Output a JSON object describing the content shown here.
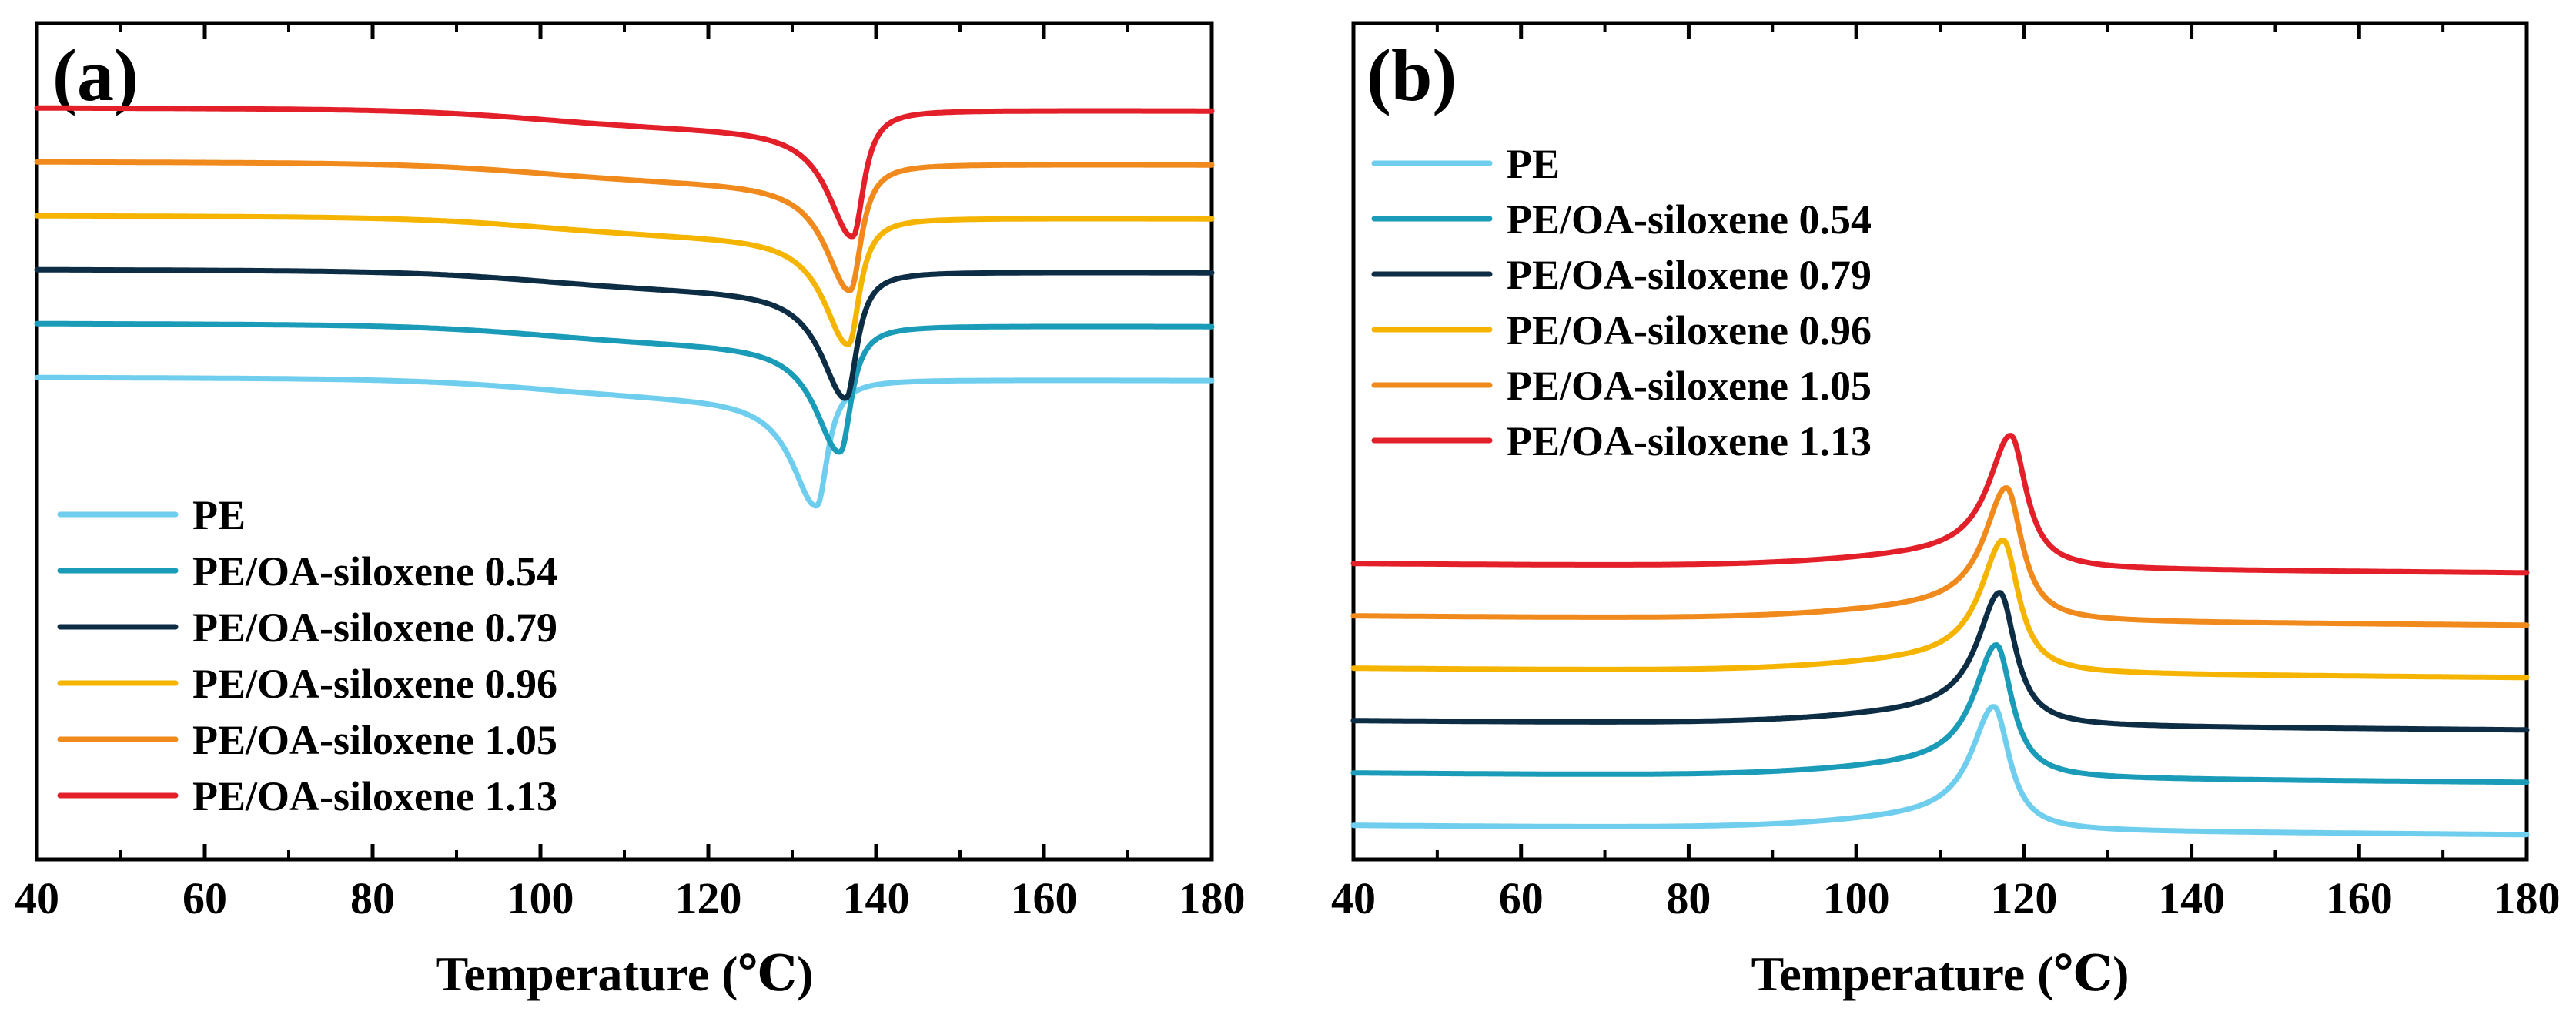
{
  "chart_data": [
    {
      "panel": "a",
      "panel_label": "(a)",
      "type": "line",
      "xlabel": "Temperature (℃)",
      "ylabel": "",
      "xlim": [
        40,
        180
      ],
      "xticks": [
        40,
        60,
        80,
        100,
        120,
        140,
        160,
        180
      ],
      "y_ticks_shown": false,
      "legend_location": "bottom-left",
      "curve_kind": "endotherm (melting dip)",
      "series": [
        {
          "name": "PE",
          "color": "#6fcdee",
          "offset": 0,
          "baseline_left": 0.6,
          "baseline_right": 0.55,
          "peak_T": 133.0,
          "peak_depth": 1.9,
          "width_left": 3.5,
          "width_right": 1.5,
          "onset": 100,
          "onset_drop": 0.3
        },
        {
          "name": "PE/OA-siloxene 0.54",
          "color": "#1a9bb8",
          "offset": 1,
          "baseline_left": 0.6,
          "baseline_right": 0.55,
          "peak_T": 135.8,
          "peak_depth": 1.9,
          "width_left": 3.5,
          "width_right": 1.5,
          "onset": 100,
          "onset_drop": 0.3
        },
        {
          "name": "PE/OA-siloxene 0.79",
          "color": "#0d2d45",
          "offset": 2,
          "baseline_left": 0.6,
          "baseline_right": 0.55,
          "peak_T": 136.5,
          "peak_depth": 1.9,
          "width_left": 3.5,
          "width_right": 1.5,
          "onset": 100,
          "onset_drop": 0.3
        },
        {
          "name": "PE/OA-siloxene 0.96",
          "color": "#f5b400",
          "offset": 3,
          "baseline_left": 0.6,
          "baseline_right": 0.55,
          "peak_T": 136.8,
          "peak_depth": 1.9,
          "width_left": 3.5,
          "width_right": 1.5,
          "onset": 100,
          "onset_drop": 0.3
        },
        {
          "name": "PE/OA-siloxene 1.05",
          "color": "#f08a1c",
          "offset": 4,
          "baseline_left": 0.6,
          "baseline_right": 0.55,
          "peak_T": 137.0,
          "peak_depth": 1.9,
          "width_left": 3.5,
          "width_right": 1.5,
          "onset": 100,
          "onset_drop": 0.3
        },
        {
          "name": "PE/OA-siloxene 1.13",
          "color": "#e3202a",
          "offset": 5,
          "baseline_left": 0.6,
          "baseline_right": 0.55,
          "peak_T": 137.3,
          "peak_depth": 1.9,
          "width_left": 3.5,
          "width_right": 1.5,
          "onset": 100,
          "onset_drop": 0.3
        }
      ]
    },
    {
      "panel": "b",
      "panel_label": "(b)",
      "type": "line",
      "xlabel": "Temperature (℃)",
      "ylabel": "",
      "xlim": [
        40,
        180
      ],
      "xticks": [
        40,
        60,
        80,
        100,
        120,
        140,
        160,
        180
      ],
      "y_ticks_shown": false,
      "legend_location": "top-left",
      "curve_kind": "exotherm (crystallization peak)",
      "series": [
        {
          "name": "PE",
          "color": "#6fcdee",
          "offset": 0,
          "baseline_left": 0.0,
          "baseline_right": -0.15,
          "peak_T": 116.5,
          "peak_height": 1.9,
          "width_left": 3.2,
          "width_right": 2.2,
          "onset": 100,
          "onset_rise": 0.25
        },
        {
          "name": "PE/OA-siloxene 0.54",
          "color": "#1a9bb8",
          "offset": 1,
          "baseline_left": 0.0,
          "baseline_right": -0.15,
          "peak_T": 116.8,
          "peak_height": 2.05,
          "width_left": 3.2,
          "width_right": 2.2,
          "onset": 100,
          "onset_rise": 0.25
        },
        {
          "name": "PE/OA-siloxene 0.79",
          "color": "#0d2d45",
          "offset": 2,
          "baseline_left": 0.0,
          "baseline_right": -0.15,
          "peak_T": 117.2,
          "peak_height": 2.05,
          "width_left": 3.2,
          "width_right": 2.2,
          "onset": 100,
          "onset_rise": 0.25
        },
        {
          "name": "PE/OA-siloxene 0.96",
          "color": "#f5b400",
          "offset": 3,
          "baseline_left": 0.0,
          "baseline_right": -0.15,
          "peak_T": 117.6,
          "peak_height": 2.05,
          "width_left": 3.2,
          "width_right": 2.2,
          "onset": 100,
          "onset_rise": 0.25
        },
        {
          "name": "PE/OA-siloxene 1.05",
          "color": "#f08a1c",
          "offset": 4,
          "baseline_left": 0.0,
          "baseline_right": -0.15,
          "peak_T": 118.0,
          "peak_height": 2.05,
          "width_left": 3.2,
          "width_right": 2.2,
          "onset": 100,
          "onset_rise": 0.25
        },
        {
          "name": "PE/OA-siloxene 1.13",
          "color": "#e3202a",
          "offset": 5,
          "baseline_left": 0.0,
          "baseline_right": -0.15,
          "peak_T": 118.5,
          "peak_height": 2.05,
          "width_left": 3.2,
          "width_right": 2.2,
          "onset": 100,
          "onset_rise": 0.25
        }
      ]
    }
  ]
}
